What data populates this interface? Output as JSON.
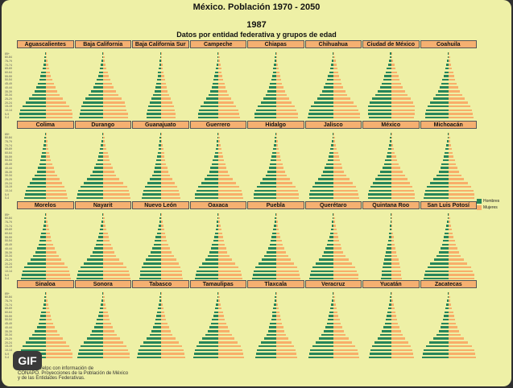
{
  "title": "México. Población 1970 - 2050",
  "year": "1987",
  "subtitle": "Datos por entidad federativa y grupos de edad",
  "legend": [
    {
      "label": "Hombres",
      "color": "#27865a"
    },
    {
      "label": "Mujeres",
      "color": "#f8ae69"
    }
  ],
  "badge": "GIF",
  "source_lines": [
    "...ciudadanielpc con información de",
    "CONAPO. Proyecciones de la Población de México",
    "y de las Entidades Federativas."
  ],
  "chart_data": {
    "type": "bar",
    "age_groups": [
      "0-4",
      "5-9",
      "10-14",
      "15-19",
      "20-24",
      "25-29",
      "30-34",
      "35-39",
      "40-44",
      "45-49",
      "50-54",
      "55-59",
      "60-64",
      "65-69",
      "70-74",
      "75-79",
      "80-84",
      "85+"
    ],
    "series": [
      {
        "name": "Hombres"
      },
      {
        "name": "Mujeres"
      }
    ],
    "states": [
      {
        "name": "Aguascalientes",
        "shape": [
          1.0,
          0.98,
          0.95,
          0.88,
          0.76,
          0.62,
          0.5,
          0.42,
          0.35,
          0.29,
          0.24,
          0.2,
          0.16,
          0.12,
          0.09,
          0.06,
          0.04,
          0.03
        ]
      },
      {
        "name": "Baja California",
        "shape": [
          0.92,
          0.9,
          0.86,
          0.82,
          0.78,
          0.68,
          0.56,
          0.46,
          0.38,
          0.31,
          0.25,
          0.2,
          0.16,
          0.12,
          0.09,
          0.06,
          0.04,
          0.03
        ]
      },
      {
        "name": "Baja California Sur",
        "shape": [
          0.55,
          0.54,
          0.52,
          0.48,
          0.42,
          0.36,
          0.3,
          0.25,
          0.21,
          0.18,
          0.15,
          0.12,
          0.1,
          0.08,
          0.06,
          0.04,
          0.03,
          0.02
        ]
      },
      {
        "name": "Campeche",
        "shape": [
          0.78,
          0.76,
          0.73,
          0.66,
          0.56,
          0.46,
          0.38,
          0.31,
          0.26,
          0.22,
          0.18,
          0.15,
          0.12,
          0.1,
          0.07,
          0.05,
          0.04,
          0.03
        ]
      },
      {
        "name": "Chiapas",
        "shape": [
          0.82,
          0.8,
          0.76,
          0.68,
          0.58,
          0.48,
          0.39,
          0.32,
          0.27,
          0.22,
          0.18,
          0.15,
          0.12,
          0.1,
          0.07,
          0.05,
          0.04,
          0.03
        ]
      },
      {
        "name": "Chihuahua",
        "shape": [
          0.98,
          0.96,
          0.92,
          0.85,
          0.74,
          0.62,
          0.51,
          0.43,
          0.36,
          0.3,
          0.25,
          0.21,
          0.17,
          0.13,
          0.1,
          0.07,
          0.05,
          0.03
        ]
      },
      {
        "name": "Ciudad de México",
        "shape": [
          0.85,
          0.87,
          0.88,
          0.86,
          0.82,
          0.72,
          0.6,
          0.5,
          0.42,
          0.36,
          0.31,
          0.26,
          0.21,
          0.16,
          0.12,
          0.08,
          0.05,
          0.04
        ]
      },
      {
        "name": "Coahuila",
        "shape": [
          0.9,
          0.88,
          0.85,
          0.79,
          0.7,
          0.59,
          0.49,
          0.41,
          0.35,
          0.29,
          0.24,
          0.2,
          0.16,
          0.12,
          0.09,
          0.06,
          0.04,
          0.03
        ]
      },
      {
        "name": "Colima",
        "shape": [
          0.8,
          0.78,
          0.75,
          0.69,
          0.6,
          0.5,
          0.41,
          0.34,
          0.29,
          0.24,
          0.2,
          0.17,
          0.14,
          0.11,
          0.08,
          0.06,
          0.04,
          0.03
        ]
      },
      {
        "name": "Durango",
        "shape": [
          1.0,
          0.98,
          0.95,
          0.87,
          0.74,
          0.6,
          0.48,
          0.4,
          0.34,
          0.28,
          0.23,
          0.19,
          0.16,
          0.12,
          0.09,
          0.06,
          0.04,
          0.03
        ]
      },
      {
        "name": "Guanajuato",
        "shape": [
          0.72,
          0.7,
          0.67,
          0.61,
          0.52,
          0.42,
          0.34,
          0.28,
          0.24,
          0.2,
          0.17,
          0.14,
          0.12,
          0.09,
          0.07,
          0.05,
          0.04,
          0.03
        ]
      },
      {
        "name": "Guerrero",
        "shape": [
          0.9,
          0.88,
          0.84,
          0.76,
          0.64,
          0.52,
          0.42,
          0.35,
          0.3,
          0.25,
          0.21,
          0.17,
          0.14,
          0.11,
          0.08,
          0.06,
          0.04,
          0.03
        ]
      },
      {
        "name": "Hidalgo",
        "shape": [
          0.85,
          0.83,
          0.8,
          0.72,
          0.61,
          0.5,
          0.4,
          0.33,
          0.28,
          0.24,
          0.2,
          0.17,
          0.14,
          0.11,
          0.08,
          0.06,
          0.04,
          0.03
        ]
      },
      {
        "name": "Jalisco",
        "shape": [
          0.93,
          0.91,
          0.88,
          0.81,
          0.7,
          0.58,
          0.47,
          0.39,
          0.33,
          0.28,
          0.23,
          0.19,
          0.16,
          0.12,
          0.09,
          0.06,
          0.04,
          0.03
        ]
      },
      {
        "name": "México",
        "shape": [
          0.88,
          0.86,
          0.83,
          0.78,
          0.7,
          0.6,
          0.5,
          0.41,
          0.34,
          0.28,
          0.23,
          0.18,
          0.14,
          0.11,
          0.08,
          0.05,
          0.04,
          0.03
        ]
      },
      {
        "name": "Michoacán",
        "shape": [
          0.95,
          0.93,
          0.9,
          0.82,
          0.7,
          0.57,
          0.46,
          0.38,
          0.32,
          0.27,
          0.22,
          0.18,
          0.15,
          0.12,
          0.09,
          0.06,
          0.04,
          0.03
        ]
      },
      {
        "name": "Morelos",
        "shape": [
          0.92,
          0.9,
          0.87,
          0.8,
          0.7,
          0.58,
          0.47,
          0.39,
          0.33,
          0.28,
          0.23,
          0.19,
          0.16,
          0.12,
          0.09,
          0.06,
          0.04,
          0.03
        ]
      },
      {
        "name": "Nayarit",
        "shape": [
          1.0,
          0.98,
          0.94,
          0.86,
          0.74,
          0.6,
          0.48,
          0.4,
          0.34,
          0.29,
          0.24,
          0.2,
          0.16,
          0.12,
          0.09,
          0.06,
          0.04,
          0.03
        ]
      },
      {
        "name": "Nuevo León",
        "shape": [
          0.8,
          0.79,
          0.77,
          0.73,
          0.66,
          0.57,
          0.48,
          0.4,
          0.34,
          0.28,
          0.23,
          0.19,
          0.15,
          0.12,
          0.09,
          0.06,
          0.04,
          0.03
        ]
      },
      {
        "name": "Oaxaca",
        "shape": [
          0.88,
          0.86,
          0.82,
          0.73,
          0.61,
          0.49,
          0.4,
          0.33,
          0.28,
          0.24,
          0.2,
          0.17,
          0.14,
          0.11,
          0.08,
          0.06,
          0.04,
          0.03
        ]
      },
      {
        "name": "Puebla",
        "shape": [
          0.9,
          0.88,
          0.85,
          0.77,
          0.66,
          0.54,
          0.44,
          0.36,
          0.3,
          0.25,
          0.21,
          0.17,
          0.14,
          0.11,
          0.08,
          0.06,
          0.04,
          0.03
        ]
      },
      {
        "name": "Querétaro",
        "shape": [
          0.92,
          0.9,
          0.86,
          0.79,
          0.68,
          0.55,
          0.44,
          0.36,
          0.3,
          0.25,
          0.21,
          0.17,
          0.14,
          0.11,
          0.08,
          0.06,
          0.04,
          0.03
        ]
      },
      {
        "name": "Quintana Roo",
        "shape": [
          0.38,
          0.37,
          0.35,
          0.33,
          0.31,
          0.27,
          0.23,
          0.19,
          0.16,
          0.13,
          0.11,
          0.09,
          0.07,
          0.05,
          0.04,
          0.03,
          0.02,
          0.02
        ]
      },
      {
        "name": "San Luis Potosí",
        "shape": [
          0.95,
          0.93,
          0.89,
          0.81,
          0.69,
          0.56,
          0.45,
          0.37,
          0.31,
          0.26,
          0.22,
          0.18,
          0.15,
          0.12,
          0.09,
          0.06,
          0.04,
          0.03
        ]
      },
      {
        "name": "Sinaloa",
        "shape": [
          1.0,
          0.98,
          0.94,
          0.87,
          0.76,
          0.62,
          0.5,
          0.41,
          0.34,
          0.28,
          0.23,
          0.19,
          0.16,
          0.12,
          0.09,
          0.06,
          0.04,
          0.03
        ]
      },
      {
        "name": "Sonora",
        "shape": [
          0.98,
          0.96,
          0.92,
          0.85,
          0.75,
          0.62,
          0.5,
          0.42,
          0.35,
          0.29,
          0.24,
          0.2,
          0.16,
          0.12,
          0.09,
          0.06,
          0.04,
          0.03
        ]
      },
      {
        "name": "Tabasco",
        "shape": [
          0.9,
          0.88,
          0.84,
          0.77,
          0.66,
          0.54,
          0.43,
          0.35,
          0.29,
          0.24,
          0.2,
          0.16,
          0.13,
          0.1,
          0.08,
          0.05,
          0.04,
          0.03
        ]
      },
      {
        "name": "Tamaulipas",
        "shape": [
          0.94,
          0.92,
          0.89,
          0.82,
          0.72,
          0.6,
          0.49,
          0.41,
          0.35,
          0.29,
          0.24,
          0.2,
          0.16,
          0.12,
          0.09,
          0.06,
          0.04,
          0.03
        ]
      },
      {
        "name": "Tlaxcala",
        "shape": [
          0.78,
          0.76,
          0.73,
          0.67,
          0.57,
          0.46,
          0.37,
          0.31,
          0.26,
          0.22,
          0.18,
          0.15,
          0.13,
          0.1,
          0.08,
          0.05,
          0.04,
          0.03
        ]
      },
      {
        "name": "Veracruz",
        "shape": [
          0.94,
          0.92,
          0.88,
          0.8,
          0.68,
          0.55,
          0.45,
          0.37,
          0.31,
          0.26,
          0.22,
          0.18,
          0.15,
          0.12,
          0.09,
          0.06,
          0.04,
          0.03
        ]
      },
      {
        "name": "Yucatán",
        "shape": [
          0.84,
          0.82,
          0.79,
          0.73,
          0.63,
          0.52,
          0.42,
          0.35,
          0.3,
          0.25,
          0.21,
          0.18,
          0.15,
          0.12,
          0.09,
          0.06,
          0.04,
          0.03
        ]
      },
      {
        "name": "Zacatecas",
        "shape": [
          1.0,
          0.98,
          0.95,
          0.86,
          0.72,
          0.57,
          0.45,
          0.37,
          0.32,
          0.27,
          0.23,
          0.19,
          0.16,
          0.12,
          0.09,
          0.06,
          0.04,
          0.03
        ]
      }
    ]
  }
}
